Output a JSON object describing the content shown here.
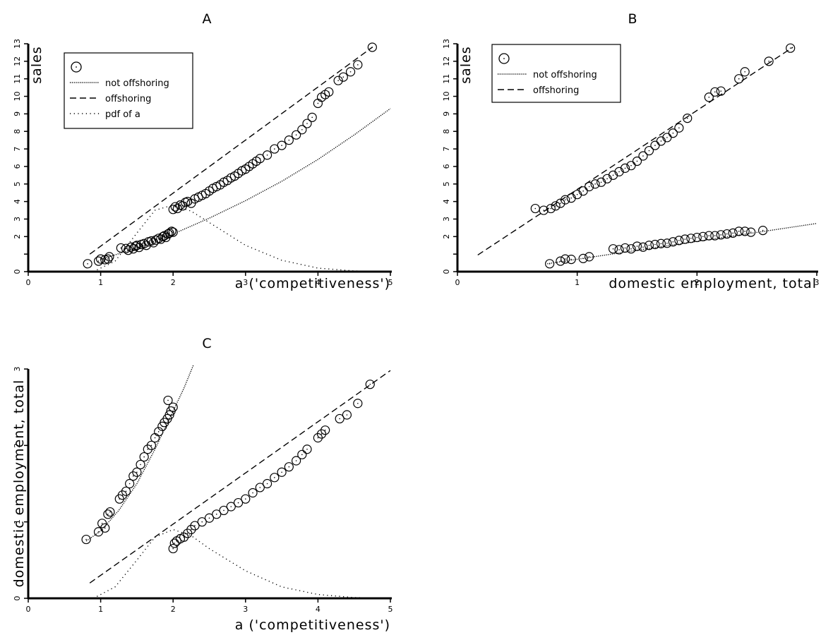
{
  "chart_data": [
    {
      "panel": "A",
      "type": "scatter",
      "title": "A",
      "xlabel": "a ('competitiveness')",
      "ylabel": "sales",
      "xlim": [
        0,
        5
      ],
      "ylim": [
        0,
        13
      ],
      "xticks": [
        0,
        1,
        2,
        3,
        4,
        5
      ],
      "yticks": [
        0,
        1,
        2,
        3,
        4,
        5,
        6,
        7,
        8,
        9,
        10,
        11,
        12,
        13
      ],
      "ytick_labels": [
        "0",
        "",
        "2",
        "3",
        "4",
        "5",
        "6",
        "7",
        "8",
        "9",
        "10",
        "11",
        "12",
        "13"
      ],
      "grid": false,
      "legend": {
        "placement": "top-left",
        "entries": [
          {
            "label": "",
            "marker": "circle-dot"
          },
          {
            "label": "not offshoring",
            "line": "densely-dotted"
          },
          {
            "label": "offshoring",
            "line": "dashed"
          },
          {
            "label": "pdf of a",
            "line": "dotted"
          }
        ]
      },
      "series": [
        {
          "group": "not offshoring (simulated firms)",
          "kind": "markers",
          "points": [
            [
              0.82,
              0.45
            ],
            [
              0.97,
              0.6
            ],
            [
              1.0,
              0.72
            ],
            [
              1.06,
              0.68
            ],
            [
              1.1,
              0.72
            ],
            [
              1.12,
              0.85
            ],
            [
              1.28,
              1.35
            ],
            [
              1.35,
              1.32
            ],
            [
              1.38,
              1.22
            ],
            [
              1.42,
              1.4
            ],
            [
              1.45,
              1.3
            ],
            [
              1.48,
              1.45
            ],
            [
              1.5,
              1.5
            ],
            [
              1.53,
              1.38
            ],
            [
              1.56,
              1.55
            ],
            [
              1.6,
              1.6
            ],
            [
              1.63,
              1.5
            ],
            [
              1.66,
              1.7
            ],
            [
              1.7,
              1.75
            ],
            [
              1.73,
              1.65
            ],
            [
              1.76,
              1.8
            ],
            [
              1.8,
              1.9
            ],
            [
              1.83,
              1.85
            ],
            [
              1.86,
              2.0
            ],
            [
              1.88,
              2.05
            ],
            [
              1.9,
              1.95
            ],
            [
              1.93,
              2.15
            ],
            [
              1.95,
              2.2
            ],
            [
              1.98,
              2.3
            ],
            [
              2.0,
              2.25
            ]
          ]
        },
        {
          "group": "offshoring (simulated firms)",
          "kind": "markers",
          "points": [
            [
              2.0,
              3.55
            ],
            [
              2.03,
              3.7
            ],
            [
              2.06,
              3.6
            ],
            [
              2.1,
              3.8
            ],
            [
              2.13,
              3.75
            ],
            [
              2.17,
              3.95
            ],
            [
              2.2,
              4.0
            ],
            [
              2.25,
              3.9
            ],
            [
              2.3,
              4.15
            ],
            [
              2.35,
              4.25
            ],
            [
              2.4,
              4.35
            ],
            [
              2.45,
              4.45
            ],
            [
              2.5,
              4.6
            ],
            [
              2.55,
              4.75
            ],
            [
              2.6,
              4.85
            ],
            [
              2.65,
              4.95
            ],
            [
              2.7,
              5.1
            ],
            [
              2.75,
              5.2
            ],
            [
              2.8,
              5.35
            ],
            [
              2.85,
              5.45
            ],
            [
              2.9,
              5.6
            ],
            [
              2.95,
              5.75
            ],
            [
              3.0,
              5.85
            ],
            [
              3.05,
              6.0
            ],
            [
              3.1,
              6.15
            ],
            [
              3.15,
              6.3
            ],
            [
              3.2,
              6.45
            ],
            [
              3.3,
              6.65
            ],
            [
              3.4,
              7.0
            ],
            [
              3.5,
              7.2
            ],
            [
              3.6,
              7.5
            ],
            [
              3.7,
              7.8
            ],
            [
              3.78,
              8.1
            ],
            [
              3.85,
              8.45
            ],
            [
              3.92,
              8.8
            ],
            [
              4.0,
              9.6
            ],
            [
              4.05,
              9.95
            ],
            [
              4.1,
              10.1
            ],
            [
              4.15,
              10.25
            ],
            [
              4.28,
              10.9
            ],
            [
              4.35,
              11.1
            ],
            [
              4.45,
              11.4
            ],
            [
              4.55,
              11.8
            ],
            [
              4.75,
              12.8
            ]
          ]
        },
        {
          "name": "not offshoring",
          "kind": "line",
          "style": "densely-dotted",
          "x": [
            1.0,
            1.5,
            2.0,
            2.5,
            3.0,
            3.5,
            4.0,
            4.5,
            5.0
          ],
          "y": [
            0.7,
            1.35,
            2.15,
            3.05,
            4.05,
            5.15,
            6.4,
            7.8,
            9.3
          ]
        },
        {
          "name": "offshoring",
          "kind": "line",
          "style": "dashed",
          "x": [
            0.85,
            4.75
          ],
          "y": [
            1.0,
            12.8
          ]
        },
        {
          "name": "pdf of a",
          "kind": "line",
          "style": "dotted",
          "x": [
            0.9,
            1.2,
            1.5,
            1.75,
            2.0,
            2.25,
            2.5,
            3.0,
            3.5,
            4.0,
            4.5,
            5.0
          ],
          "y": [
            0.0,
            0.6,
            2.2,
            3.5,
            3.8,
            3.45,
            2.8,
            1.5,
            0.65,
            0.2,
            0.04,
            0.0
          ]
        }
      ]
    },
    {
      "panel": "B",
      "type": "scatter",
      "title": "B",
      "xlabel": "domestic employment, total",
      "ylabel": "sales",
      "xlim": [
        0,
        3
      ],
      "ylim": [
        0,
        13
      ],
      "xticks": [
        0,
        1,
        2,
        3
      ],
      "yticks": [
        0,
        1,
        2,
        3,
        4,
        5,
        6,
        7,
        8,
        9,
        10,
        11,
        12,
        13
      ],
      "ytick_labels": [
        "0",
        "",
        "2",
        "3",
        "4",
        "5",
        "6",
        "7",
        "8",
        "9",
        "10",
        "11",
        "12",
        "13"
      ],
      "grid": false,
      "legend": {
        "placement": "top-left",
        "entries": [
          {
            "label": "",
            "marker": "circle-dot"
          },
          {
            "label": "not offshoring",
            "line": "densely-dotted"
          },
          {
            "label": "offshoring",
            "line": "dashed"
          }
        ]
      },
      "series": [
        {
          "group": "not offshoring (simulated firms)",
          "kind": "markers",
          "points": [
            [
              0.77,
              0.45
            ],
            [
              0.86,
              0.6
            ],
            [
              0.9,
              0.72
            ],
            [
              0.95,
              0.7
            ],
            [
              1.05,
              0.75
            ],
            [
              1.1,
              0.85
            ],
            [
              1.3,
              1.3
            ],
            [
              1.35,
              1.25
            ],
            [
              1.4,
              1.35
            ],
            [
              1.45,
              1.3
            ],
            [
              1.5,
              1.45
            ],
            [
              1.55,
              1.4
            ],
            [
              1.6,
              1.5
            ],
            [
              1.65,
              1.55
            ],
            [
              1.7,
              1.6
            ],
            [
              1.75,
              1.62
            ],
            [
              1.8,
              1.7
            ],
            [
              1.85,
              1.78
            ],
            [
              1.9,
              1.85
            ],
            [
              1.95,
              1.9
            ],
            [
              2.0,
              1.95
            ],
            [
              2.05,
              2.0
            ],
            [
              2.1,
              2.05
            ],
            [
              2.15,
              2.05
            ],
            [
              2.2,
              2.1
            ],
            [
              2.25,
              2.15
            ],
            [
              2.3,
              2.2
            ],
            [
              2.35,
              2.3
            ],
            [
              2.4,
              2.3
            ],
            [
              2.45,
              2.25
            ],
            [
              2.55,
              2.35
            ]
          ]
        },
        {
          "group": "offshoring (simulated firms)",
          "kind": "markers",
          "points": [
            [
              0.65,
              3.6
            ],
            [
              0.72,
              3.5
            ],
            [
              0.78,
              3.6
            ],
            [
              0.82,
              3.75
            ],
            [
              0.86,
              3.9
            ],
            [
              0.9,
              4.1
            ],
            [
              0.95,
              4.2
            ],
            [
              1.0,
              4.4
            ],
            [
              1.05,
              4.6
            ],
            [
              1.1,
              4.85
            ],
            [
              1.15,
              5.0
            ],
            [
              1.2,
              5.1
            ],
            [
              1.25,
              5.3
            ],
            [
              1.3,
              5.5
            ],
            [
              1.35,
              5.7
            ],
            [
              1.4,
              5.9
            ],
            [
              1.45,
              6.05
            ],
            [
              1.5,
              6.3
            ],
            [
              1.55,
              6.6
            ],
            [
              1.6,
              6.9
            ],
            [
              1.65,
              7.2
            ],
            [
              1.7,
              7.45
            ],
            [
              1.75,
              7.65
            ],
            [
              1.8,
              7.9
            ],
            [
              1.85,
              8.2
            ],
            [
              1.92,
              8.75
            ],
            [
              2.1,
              9.95
            ],
            [
              2.15,
              10.25
            ],
            [
              2.2,
              10.3
            ],
            [
              2.35,
              11.0
            ],
            [
              2.4,
              11.4
            ],
            [
              2.6,
              12.0
            ],
            [
              2.78,
              12.75
            ]
          ]
        },
        {
          "name": "not offshoring",
          "kind": "line",
          "style": "densely-dotted",
          "x": [
            0.75,
            3.0
          ],
          "y": [
            0.45,
            2.75
          ]
        },
        {
          "name": "offshoring",
          "kind": "line",
          "style": "dashed",
          "x": [
            0.17,
            2.8
          ],
          "y": [
            0.95,
            12.8
          ]
        }
      ]
    },
    {
      "panel": "C",
      "type": "scatter",
      "title": "C",
      "xlabel": "a ('competitiveness')",
      "ylabel": "domestic employment, total",
      "xlim": [
        0,
        5
      ],
      "ylim": [
        0,
        3
      ],
      "xticks": [
        0,
        1,
        2,
        3,
        4,
        5
      ],
      "yticks": [
        0,
        1,
        2,
        3
      ],
      "ytick_labels": [
        "0",
        "1",
        "2",
        "3"
      ],
      "grid": false,
      "series": [
        {
          "group": "not offshoring (simulated firms)",
          "kind": "markers",
          "points": [
            [
              0.8,
              0.77
            ],
            [
              0.97,
              0.87
            ],
            [
              1.02,
              0.98
            ],
            [
              1.06,
              0.92
            ],
            [
              1.1,
              1.1
            ],
            [
              1.13,
              1.13
            ],
            [
              1.26,
              1.3
            ],
            [
              1.3,
              1.35
            ],
            [
              1.35,
              1.4
            ],
            [
              1.4,
              1.5
            ],
            [
              1.45,
              1.6
            ],
            [
              1.5,
              1.65
            ],
            [
              1.55,
              1.75
            ],
            [
              1.6,
              1.85
            ],
            [
              1.65,
              1.95
            ],
            [
              1.7,
              2.0
            ],
            [
              1.75,
              2.1
            ],
            [
              1.8,
              2.18
            ],
            [
              1.85,
              2.25
            ],
            [
              1.88,
              2.3
            ],
            [
              1.92,
              2.35
            ],
            [
              1.95,
              2.4
            ],
            [
              1.97,
              2.45
            ],
            [
              2.0,
              2.5
            ],
            [
              1.93,
              2.59
            ]
          ]
        },
        {
          "group": "offshoring (simulated firms)",
          "kind": "markers",
          "points": [
            [
              2.0,
              0.65
            ],
            [
              2.02,
              0.72
            ],
            [
              2.05,
              0.75
            ],
            [
              2.1,
              0.78
            ],
            [
              2.15,
              0.8
            ],
            [
              2.2,
              0.85
            ],
            [
              2.25,
              0.9
            ],
            [
              2.3,
              0.95
            ],
            [
              2.4,
              1.0
            ],
            [
              2.5,
              1.05
            ],
            [
              2.6,
              1.1
            ],
            [
              2.7,
              1.15
            ],
            [
              2.8,
              1.2
            ],
            [
              2.9,
              1.25
            ],
            [
              3.0,
              1.3
            ],
            [
              3.1,
              1.38
            ],
            [
              3.2,
              1.45
            ],
            [
              3.3,
              1.5
            ],
            [
              3.4,
              1.58
            ],
            [
              3.5,
              1.65
            ],
            [
              3.6,
              1.72
            ],
            [
              3.7,
              1.8
            ],
            [
              3.78,
              1.88
            ],
            [
              3.85,
              1.95
            ],
            [
              4.0,
              2.1
            ],
            [
              4.05,
              2.15
            ],
            [
              4.1,
              2.2
            ],
            [
              4.3,
              2.35
            ],
            [
              4.4,
              2.4
            ],
            [
              4.55,
              2.55
            ],
            [
              4.72,
              2.8
            ]
          ]
        },
        {
          "name": "not offshoring",
          "kind": "line",
          "style": "densely-dotted",
          "x": [
            0.8,
            1.0,
            1.25,
            1.5,
            1.75,
            2.0,
            2.15,
            2.28
          ],
          "y": [
            0.75,
            0.88,
            1.15,
            1.5,
            1.95,
            2.45,
            2.75,
            3.05
          ]
        },
        {
          "name": "offshoring",
          "kind": "line",
          "style": "dashed",
          "x": [
            0.85,
            5.0
          ],
          "y": [
            0.2,
            2.98
          ]
        },
        {
          "name": "pdf of a",
          "kind": "line",
          "style": "dotted",
          "x": [
            0.9,
            1.2,
            1.5,
            1.75,
            2.0,
            2.25,
            2.5,
            3.0,
            3.5,
            4.0,
            4.5,
            5.0
          ],
          "y": [
            0.0,
            0.15,
            0.5,
            0.8,
            0.9,
            0.82,
            0.65,
            0.36,
            0.15,
            0.05,
            0.01,
            0.0
          ]
        }
      ]
    }
  ]
}
